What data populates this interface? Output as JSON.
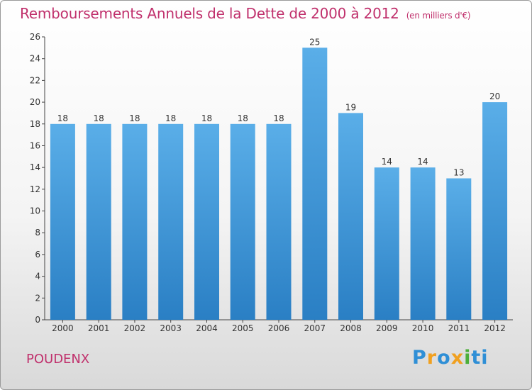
{
  "header": {
    "title": "Remboursements Annuels de la Dette de 2000 à 2012",
    "subtitle": "(en milliers d'€)"
  },
  "footer": {
    "commune": "POUDENX",
    "logo_letters": [
      "P",
      "r",
      "o",
      "x",
      "i",
      "t",
      "i"
    ],
    "logo_colors": [
      "#2f8fd6",
      "#f0a020",
      "#2f8fd6",
      "#f0a020",
      "#4caf3a",
      "#2f8fd6",
      "#2f8fd6"
    ]
  },
  "chart_data": {
    "type": "bar",
    "title": "Remboursements Annuels de la Dette de 2000 à 2012",
    "subtitle": "(en milliers d'€)",
    "categories": [
      "2000",
      "2001",
      "2002",
      "2003",
      "2004",
      "2005",
      "2006",
      "2007",
      "2008",
      "2009",
      "2010",
      "2011",
      "2012"
    ],
    "values": [
      18,
      18,
      18,
      18,
      18,
      18,
      18,
      25,
      19,
      14,
      14,
      13,
      20
    ],
    "ylim": [
      0,
      26
    ],
    "yticks": [
      0,
      2,
      4,
      6,
      8,
      10,
      12,
      14,
      16,
      18,
      20,
      22,
      24,
      26
    ],
    "xlabel": "",
    "ylabel": "",
    "grid": false,
    "legend": "none",
    "bar_color_top": "#5aaee8",
    "bar_color_bottom": "#2a7fc4"
  }
}
